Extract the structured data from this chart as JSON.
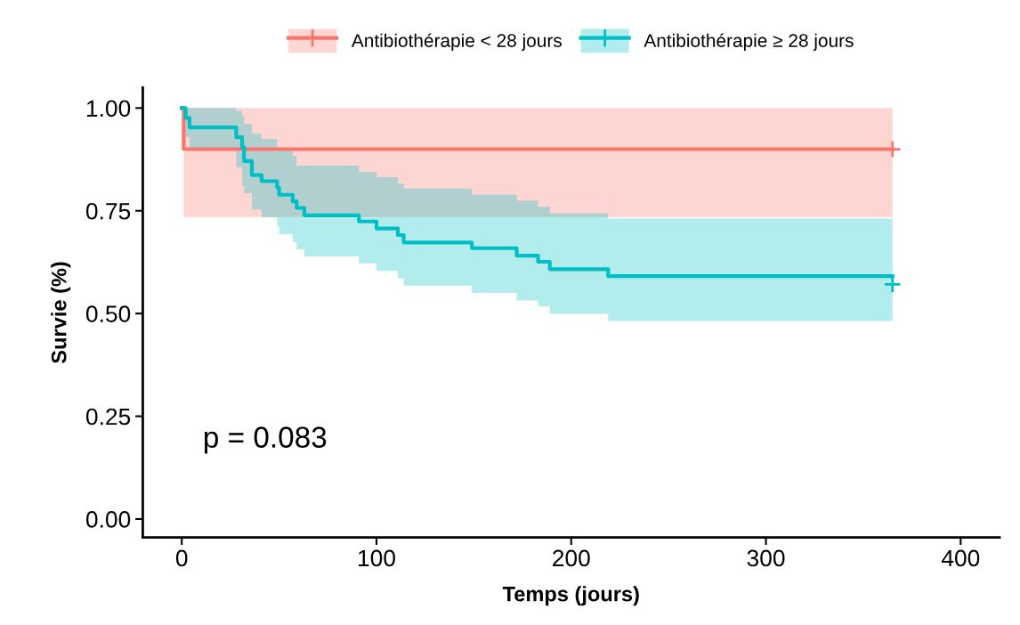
{
  "chart_data": {
    "type": "step",
    "xlabel": "Temps (jours)",
    "ylabel": "Survie (%)",
    "xlim": [
      -20,
      420
    ],
    "ylim": [
      -0.045,
      1.05
    ],
    "xticks": [
      0,
      100,
      200,
      300,
      400
    ],
    "yticks": [
      {
        "value": 0,
        "label": "0.00"
      },
      {
        "value": 0.25,
        "label": "0.25"
      },
      {
        "value": 0.5,
        "label": "0.50"
      },
      {
        "value": 0.75,
        "label": "0.75"
      },
      {
        "value": 1.0,
        "label": "1.00"
      }
    ],
    "grid": false,
    "legend": "top",
    "annotations": [
      "p = 0.083"
    ],
    "series": [
      {
        "name": "Antibiothérapie < 28 jours",
        "color": "#f8766d",
        "x": [
          0,
          1,
          365
        ],
        "values": [
          1.0,
          0.9,
          0.9
        ],
        "lower": [
          1.0,
          0.735,
          0.735
        ],
        "upper": [
          1.0,
          1.0,
          1.0
        ]
      },
      {
        "name": "Antibiothérapie ≥ 28 jours",
        "color": "#00bfc4",
        "x": [
          0,
          2,
          4,
          28,
          31,
          32,
          36,
          41,
          49,
          50,
          57,
          59,
          63,
          91,
          100,
          111,
          114,
          149,
          172,
          183,
          189,
          219,
          365
        ],
        "values": [
          1.0,
          0.976,
          0.953,
          0.929,
          0.905,
          0.871,
          0.837,
          0.822,
          0.806,
          0.789,
          0.773,
          0.757,
          0.739,
          0.724,
          0.707,
          0.691,
          0.673,
          0.659,
          0.641,
          0.626,
          0.608,
          0.591,
          0.591
        ],
        "lower": [
          1.0,
          0.93,
          0.9,
          0.855,
          0.811,
          0.793,
          0.753,
          0.734,
          0.713,
          0.693,
          0.673,
          0.656,
          0.639,
          0.622,
          0.604,
          0.586,
          0.568,
          0.55,
          0.532,
          0.517,
          0.499,
          0.482,
          0.482
        ],
        "upper": [
          1.0,
          1.0,
          1.0,
          0.993,
          0.982,
          0.962,
          0.938,
          0.925,
          0.9,
          0.9,
          0.884,
          0.86,
          0.86,
          0.845,
          0.832,
          0.816,
          0.804,
          0.789,
          0.775,
          0.76,
          0.744,
          0.731,
          0.731
        ]
      },
      {
        "type": "scatter",
        "marker": "cross",
        "color": "#f8766d",
        "x": [
          365
        ],
        "values": [
          0.9
        ]
      },
      {
        "type": "scatter",
        "marker": "cross",
        "color": "#00bfc4",
        "x": [
          365
        ],
        "values": [
          0.571
        ]
      }
    ]
  }
}
